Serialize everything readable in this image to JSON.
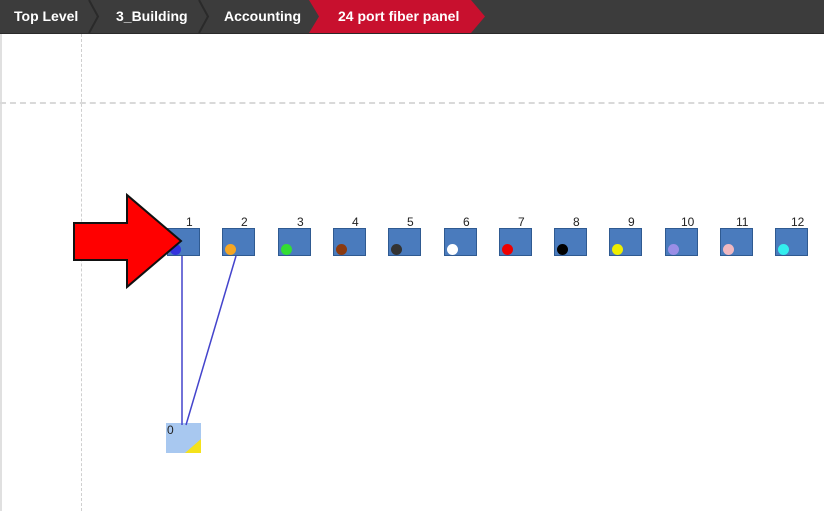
{
  "breadcrumb": {
    "items": [
      {
        "label": "Top Level"
      },
      {
        "label": "3_Building"
      },
      {
        "label": "Accounting"
      },
      {
        "label": "24 port fiber panel",
        "active": true
      }
    ]
  },
  "colors": {
    "active_crumb": "#c8102e",
    "port_fill": "#4a7bbd",
    "link_line": "#4444cc",
    "arrow": "#ff0000"
  },
  "ports": [
    {
      "number": "1",
      "dot_color": "#3333dd"
    },
    {
      "number": "2",
      "dot_color": "#f5a623"
    },
    {
      "number": "3",
      "dot_color": "#33dd33"
    },
    {
      "number": "4",
      "dot_color": "#8b3a10"
    },
    {
      "number": "5",
      "dot_color": "#333333"
    },
    {
      "number": "6",
      "dot_color": "#ffffff"
    },
    {
      "number": "7",
      "dot_color": "#ee0000"
    },
    {
      "number": "8",
      "dot_color": "#000000"
    },
    {
      "number": "9",
      "dot_color": "#eeee00"
    },
    {
      "number": "10",
      "dot_color": "#9a8ee6"
    },
    {
      "number": "11",
      "dot_color": "#f0b8c0"
    },
    {
      "number": "12",
      "dot_color": "#33eeee"
    }
  ],
  "connector": {
    "label": "0",
    "icon": "connector-node-icon"
  },
  "annotation": {
    "icon": "red-arrow-icon"
  }
}
